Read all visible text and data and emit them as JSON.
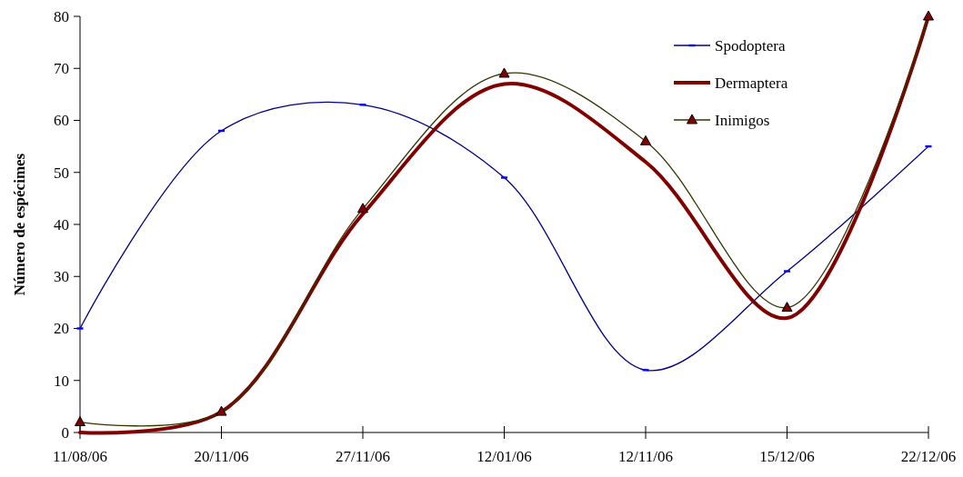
{
  "chart_data": {
    "type": "line",
    "ylabel": "Número de espécimes",
    "categories": [
      "11/08/06",
      "20/11/06",
      "27/11/06",
      "12/01/06",
      "12/11/06",
      "15/12/06",
      "22/12/06"
    ],
    "series": [
      {
        "name": "Spodoptera",
        "color": "#000080",
        "marker": "square",
        "values": [
          20,
          58,
          63,
          49,
          12,
          31,
          55
        ]
      },
      {
        "name": "Dermaptera",
        "color": "#800000",
        "marker": "none",
        "values": [
          0,
          4,
          42,
          67,
          52,
          22,
          80
        ]
      },
      {
        "name": "Inimigos",
        "color": "#333300",
        "marker": "triangle",
        "values": [
          2,
          4,
          43,
          69,
          56,
          24,
          80
        ]
      }
    ],
    "ylim": [
      0,
      80
    ],
    "yticks": [
      0,
      10,
      20,
      30,
      40,
      50,
      60,
      70,
      80
    ],
    "legend": "top right",
    "grid": false
  }
}
